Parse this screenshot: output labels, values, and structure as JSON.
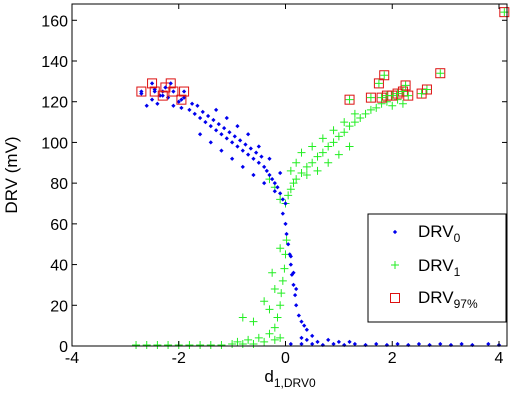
{
  "chart_data": {
    "type": "scatter",
    "title": "",
    "xlabel": {
      "main": "d",
      "sub": "1,DRV0"
    },
    "ylabel": "DRV (mV)",
    "xlim": [
      -4,
      4.15
    ],
    "ylim": [
      0,
      168
    ],
    "xticks": [
      -4,
      -2,
      0,
      2,
      4
    ],
    "yticks": [
      0,
      20,
      40,
      60,
      80,
      100,
      120,
      140,
      160
    ],
    "xtick_labels": [
      "-4",
      "-2",
      "0",
      "2",
      "4"
    ],
    "ytick_labels": [
      "0",
      "20",
      "40",
      "60",
      "80",
      "100",
      "120",
      "140",
      "160"
    ],
    "grid": false,
    "legend_position": "lower-right",
    "series": [
      {
        "name": {
          "main": "DRV",
          "sub": "0"
        },
        "marker": "dot",
        "color": "#0000ee",
        "points": [
          [
            -2.7,
            124
          ],
          [
            -2.6,
            118
          ],
          [
            -2.5,
            121
          ],
          [
            -2.45,
            126
          ],
          [
            -2.4,
            119
          ],
          [
            -2.35,
            123
          ],
          [
            -2.3,
            125
          ],
          [
            -2.2,
            122
          ],
          [
            -2.1,
            118
          ],
          [
            -2.0,
            120
          ],
          [
            -1.95,
            117
          ],
          [
            -1.9,
            122
          ],
          [
            -1.8,
            116
          ],
          [
            -1.75,
            119
          ],
          [
            -1.7,
            114
          ],
          [
            -1.65,
            118
          ],
          [
            -1.6,
            112
          ],
          [
            -1.55,
            115
          ],
          [
            -1.5,
            110
          ],
          [
            -1.45,
            113
          ],
          [
            -1.4,
            108
          ],
          [
            -1.35,
            111
          ],
          [
            -1.3,
            106
          ],
          [
            -1.25,
            109
          ],
          [
            -1.2,
            104
          ],
          [
            -1.15,
            107
          ],
          [
            -1.1,
            102
          ],
          [
            -1.05,
            105
          ],
          [
            -1.0,
            100
          ],
          [
            -0.95,
            103
          ],
          [
            -0.9,
            98
          ],
          [
            -0.85,
            101
          ],
          [
            -0.8,
            96
          ],
          [
            -0.75,
            99
          ],
          [
            -0.7,
            94
          ],
          [
            -0.65,
            97
          ],
          [
            -0.6,
            92
          ],
          [
            -0.55,
            95
          ],
          [
            -0.5,
            90
          ],
          [
            -0.45,
            93
          ],
          [
            -0.4,
            88
          ],
          [
            -0.35,
            86
          ],
          [
            -0.3,
            84
          ],
          [
            -0.25,
            82
          ],
          [
            -0.2,
            80
          ],
          [
            -0.15,
            78
          ],
          [
            -0.1,
            75
          ],
          [
            -0.05,
            72
          ],
          [
            0.0,
            70
          ],
          [
            -1.3,
            116
          ],
          [
            -1.1,
            112
          ],
          [
            -0.9,
            108
          ],
          [
            -0.7,
            104
          ],
          [
            -0.5,
            98
          ],
          [
            -0.3,
            92
          ],
          [
            -0.1,
            85
          ],
          [
            -1.6,
            104
          ],
          [
            -1.4,
            100
          ],
          [
            -1.2,
            96
          ],
          [
            -1.0,
            92
          ],
          [
            -0.8,
            88
          ],
          [
            -0.6,
            84
          ],
          [
            -0.4,
            80
          ],
          [
            -0.2,
            76
          ],
          [
            -0.05,
            65
          ],
          [
            0.0,
            60
          ],
          [
            0.02,
            55
          ],
          [
            0.05,
            50
          ],
          [
            0.08,
            45
          ],
          [
            0.1,
            40
          ],
          [
            0.12,
            35
          ],
          [
            0.15,
            30
          ],
          [
            0.18,
            25
          ],
          [
            0.2,
            20
          ],
          [
            0.25,
            15
          ],
          [
            0.3,
            12
          ],
          [
            0.35,
            10
          ],
          [
            0.4,
            8
          ],
          [
            0.2,
            28
          ],
          [
            0.15,
            36
          ],
          [
            0.1,
            44
          ],
          [
            0.1,
            1
          ],
          [
            0.3,
            1
          ],
          [
            0.5,
            1
          ],
          [
            0.7,
            0.5
          ],
          [
            0.9,
            1
          ],
          [
            1.1,
            0.5
          ],
          [
            1.3,
            1
          ],
          [
            1.5,
            0.5
          ],
          [
            1.7,
            1
          ],
          [
            1.9,
            0.5
          ],
          [
            2.1,
            1
          ],
          [
            2.3,
            0.5
          ],
          [
            2.5,
            1
          ],
          [
            2.7,
            0.5
          ],
          [
            2.9,
            1
          ],
          [
            3.1,
            0.5
          ],
          [
            3.3,
            1
          ],
          [
            3.5,
            0.5
          ],
          [
            3.8,
            1
          ],
          [
            4.0,
            0.5
          ],
          [
            0.4,
            3
          ],
          [
            0.6,
            2
          ],
          [
            0.8,
            3
          ],
          [
            1.0,
            2
          ],
          [
            1.2,
            2
          ],
          [
            0.5,
            5
          ],
          [
            0.3,
            4
          ]
        ]
      },
      {
        "name": {
          "main": "DRV",
          "sub": "1"
        },
        "marker": "plus",
        "color": "#22ee22",
        "points": [
          [
            -2.8,
            0.5
          ],
          [
            -2.6,
            0.5
          ],
          [
            -2.4,
            0.5
          ],
          [
            -2.2,
            0.5
          ],
          [
            -2.0,
            0.5
          ],
          [
            -1.8,
            0.5
          ],
          [
            -1.6,
            0.5
          ],
          [
            -1.4,
            0.5
          ],
          [
            -1.2,
            0.5
          ],
          [
            -1.0,
            1
          ],
          [
            -0.8,
            1
          ],
          [
            -0.6,
            1
          ],
          [
            -0.4,
            2
          ],
          [
            -0.2,
            3
          ],
          [
            -0.1,
            4
          ],
          [
            -0.9,
            2
          ],
          [
            -0.7,
            3
          ],
          [
            -0.5,
            4
          ],
          [
            -0.3,
            6
          ],
          [
            -0.2,
            9
          ],
          [
            -0.15,
            14
          ],
          [
            -0.1,
            20
          ],
          [
            -0.08,
            26
          ],
          [
            -0.05,
            32
          ],
          [
            -0.02,
            38
          ],
          [
            0.0,
            45
          ],
          [
            0.02,
            52
          ],
          [
            -0.3,
            18
          ],
          [
            -0.4,
            22
          ],
          [
            -0.2,
            28
          ],
          [
            -0.25,
            36
          ],
          [
            -0.1,
            48
          ],
          [
            -0.6,
            12
          ],
          [
            -0.8,
            14
          ],
          [
            0.0,
            70
          ],
          [
            0.05,
            74
          ],
          [
            0.1,
            77
          ],
          [
            0.15,
            80
          ],
          [
            0.2,
            82
          ],
          [
            0.3,
            85
          ],
          [
            0.4,
            88
          ],
          [
            0.5,
            90
          ],
          [
            0.6,
            93
          ],
          [
            0.7,
            95
          ],
          [
            0.8,
            98
          ],
          [
            0.9,
            100
          ],
          [
            1.0,
            103
          ],
          [
            1.1,
            105
          ],
          [
            1.2,
            108
          ],
          [
            1.3,
            110
          ],
          [
            1.4,
            112
          ],
          [
            1.5,
            114
          ],
          [
            1.6,
            116
          ],
          [
            1.7,
            117
          ],
          [
            1.8,
            119
          ],
          [
            1.9,
            120
          ],
          [
            2.0,
            118
          ],
          [
            2.1,
            121
          ],
          [
            2.2,
            119
          ],
          [
            0.3,
            95
          ],
          [
            0.5,
            98
          ],
          [
            0.7,
            102
          ],
          [
            0.9,
            106
          ],
          [
            1.1,
            110
          ],
          [
            1.3,
            114
          ],
          [
            0.2,
            90
          ],
          [
            0.4,
            84
          ],
          [
            0.6,
            86
          ],
          [
            0.8,
            90
          ],
          [
            1.0,
            94
          ],
          [
            1.2,
            98
          ],
          [
            -0.1,
            72
          ],
          [
            -0.2,
            78
          ],
          [
            -0.3,
            82
          ],
          [
            0.1,
            86
          ]
        ]
      },
      {
        "name": {
          "main": "DRV",
          "sub": "97%"
        },
        "marker": "square",
        "color": "#dd1111",
        "points": [
          [
            -2.7,
            125
          ],
          [
            -2.5,
            129
          ],
          [
            -2.45,
            125
          ],
          [
            -2.3,
            123
          ],
          [
            -2.25,
            127
          ],
          [
            -2.15,
            129
          ],
          [
            -2.1,
            125
          ],
          [
            -1.95,
            121
          ],
          [
            -1.9,
            125
          ],
          [
            1.2,
            121
          ],
          [
            1.6,
            122
          ],
          [
            1.75,
            129
          ],
          [
            1.8,
            122
          ],
          [
            1.85,
            133
          ],
          [
            1.9,
            123
          ],
          [
            2.0,
            123
          ],
          [
            2.1,
            124
          ],
          [
            2.2,
            125
          ],
          [
            2.25,
            128
          ],
          [
            2.3,
            123
          ],
          [
            2.55,
            124
          ],
          [
            2.65,
            126
          ],
          [
            2.9,
            134
          ],
          [
            4.1,
            164
          ]
        ]
      }
    ]
  }
}
